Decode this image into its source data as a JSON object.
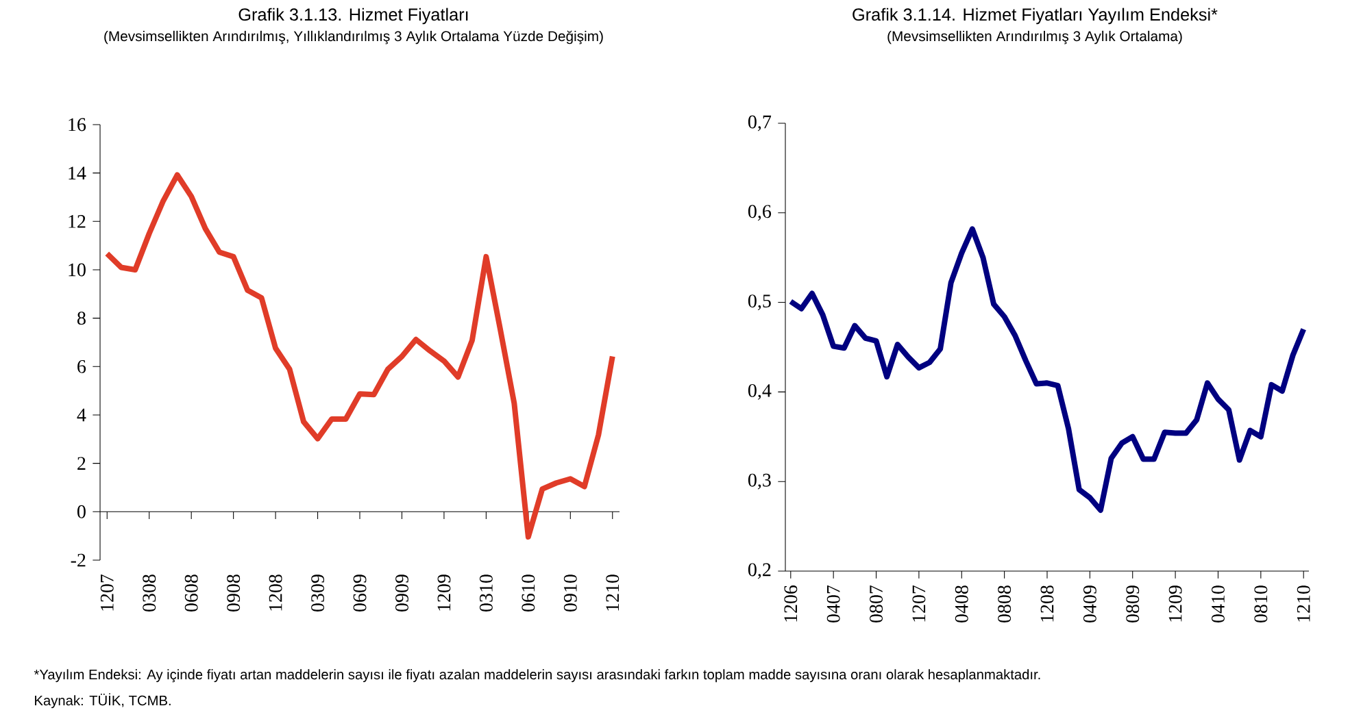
{
  "chart_data": [
    {
      "type": "line",
      "title": "Grafik 3.1.13. Hizmet Fiyatları",
      "subtitle": "(Mevsimsellikten Arındırılmış, Yıllıklandırılmış 3 Aylık Ortalama Yüzde Değişim)",
      "categories": [
        "1207",
        null,
        null,
        "0308",
        null,
        null,
        "0608",
        null,
        null,
        "0908",
        null,
        null,
        "1208",
        null,
        null,
        "0309",
        null,
        null,
        "0609",
        null,
        null,
        "0909",
        null,
        null,
        "1209",
        null,
        null,
        "0310",
        null,
        null,
        "0610",
        null,
        null,
        "0910",
        null,
        null,
        "1210"
      ],
      "series": [
        {
          "color": "#e03c28",
          "values": [
            10.67,
            10.1,
            10.0,
            11.5,
            12.85,
            13.92,
            13.03,
            11.7,
            10.73,
            10.54,
            9.16,
            8.84,
            6.76,
            5.89,
            3.72,
            3.02,
            3.83,
            3.83,
            4.87,
            4.84,
            5.89,
            6.42,
            7.12,
            6.65,
            6.23,
            5.57,
            7.08,
            10.54,
            7.56,
            4.48,
            -1.04,
            0.94,
            1.19,
            1.36,
            1.04,
            3.17,
            6.42
          ]
        }
      ],
      "ylim": [
        -2,
        16
      ],
      "yticks": [
        -2,
        0,
        2,
        4,
        6,
        8,
        10,
        12,
        14,
        16
      ]
    },
    {
      "type": "line",
      "title": "Grafik 3.1.14. Hizmet Fiyatları Yayılım Endeksi*",
      "subtitle": "(Mevsimsellikten Arındırılmış 3 Aylık Ortalama)",
      "categories": [
        "1206",
        null,
        null,
        null,
        "0407",
        null,
        null,
        null,
        "0807",
        null,
        null,
        null,
        "1207",
        null,
        null,
        null,
        "0408",
        null,
        null,
        null,
        "0808",
        null,
        null,
        null,
        "1208",
        null,
        null,
        null,
        "0409",
        null,
        null,
        null,
        "0809",
        null,
        null,
        null,
        "1209",
        null,
        null,
        null,
        "0410",
        null,
        null,
        null,
        "0810",
        null,
        null,
        null,
        "1210"
      ],
      "series": [
        {
          "color": "#000080",
          "values": [
            0.501,
            0.493,
            0.51,
            0.486,
            0.451,
            0.449,
            0.474,
            0.46,
            0.457,
            0.417,
            0.453,
            0.439,
            0.427,
            0.433,
            0.448,
            0.522,
            0.555,
            0.582,
            0.55,
            0.498,
            0.484,
            0.463,
            0.435,
            0.409,
            0.41,
            0.407,
            0.359,
            0.291,
            0.282,
            0.268,
            0.326,
            0.343,
            0.35,
            0.325,
            0.325,
            0.355,
            0.354,
            0.354,
            0.369,
            0.41,
            0.392,
            0.38,
            0.324,
            0.357,
            0.35,
            0.408,
            0.401,
            0.441,
            0.47
          ]
        }
      ],
      "ylim": [
        0.2,
        0.7
      ],
      "yticks": [
        {
          "value": 0.2,
          "label": "0,2"
        },
        {
          "value": 0.3,
          "label": "0,3"
        },
        {
          "value": 0.4,
          "label": "0,4"
        },
        {
          "value": 0.5,
          "label": "0,5"
        },
        {
          "value": 0.6,
          "label": "0,6"
        },
        {
          "value": 0.7,
          "label": "0,7"
        }
      ],
      "annotations": [
        "*Yayılım Endeksi: Ay içinde fiyatı artan maddelerin sayısı ile fiyatı azalan maddelerin sayısı arasındaki farkın toplam madde sayısına oranı olarak hesaplanmaktadır.",
        "Kaynak: TÜİK, TCMB."
      ]
    }
  ]
}
